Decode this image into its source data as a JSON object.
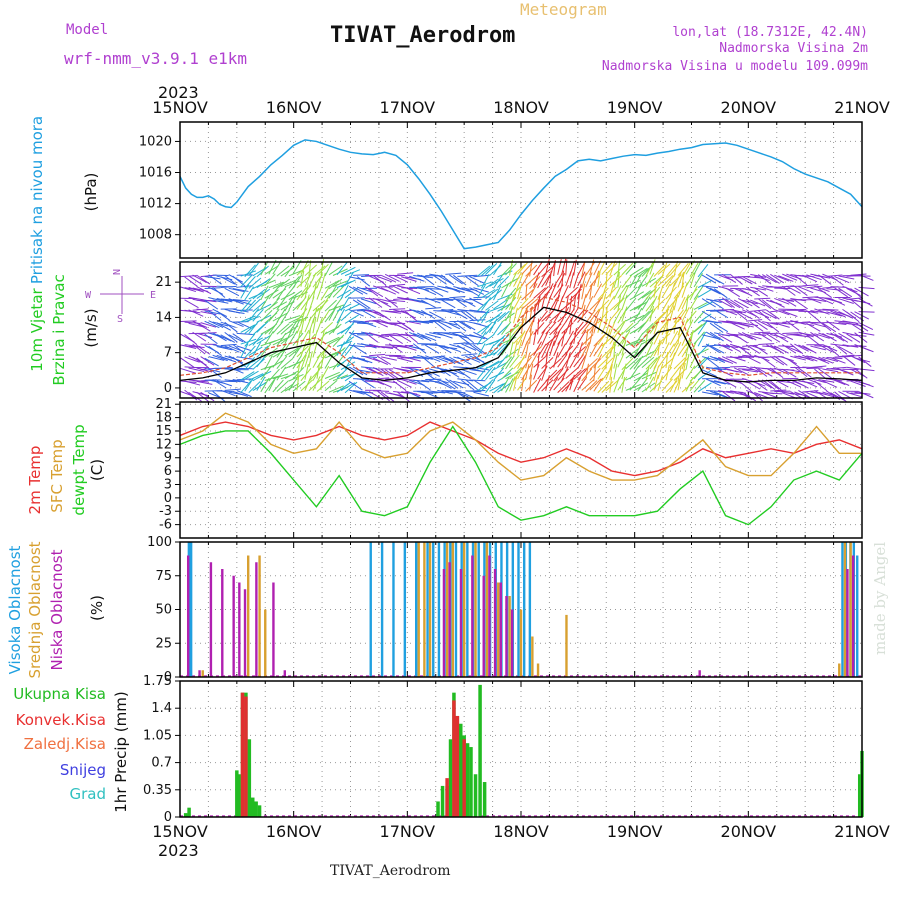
{
  "header": {
    "model_label": "Model",
    "model_name": "wrf-nmm_v3.9.1 e1km",
    "product": "Meteogram",
    "station": "TIVAT_Aerodrom",
    "lonlat": "lon,lat (18.7312E, 42.4N)",
    "altitude": "Nadmorska Visina 2m",
    "model_altitude": "Nadmorska Visina u modelu 109.099m",
    "year": "2023",
    "footer_station": "TIVAT_Aerodrom",
    "credit": "made by Angel",
    "compass": {
      "n": "N",
      "s": "S",
      "w": "W",
      "e": "E"
    }
  },
  "colors": {
    "pressure": "#1f9fe0",
    "wind_title": "#22cc22",
    "t2m": "#e83030",
    "sfc": "#d8a030",
    "dew": "#22cc22",
    "high": "#20a0e0",
    "mid": "#d8a030",
    "low": "#b020b0",
    "rain": "#22bb22",
    "conv": "#e03030"
  },
  "x_axis": {
    "labels": [
      "15NOV",
      "16NOV",
      "17NOV",
      "18NOV",
      "19NOV",
      "20NOV",
      "21NOV"
    ]
  },
  "chart_data": [
    {
      "type": "line",
      "panel": "pressure",
      "ylabel_main": "Pritisak na nivou mora",
      "ylabel_unit": "(hPa)",
      "yticks": [
        1008,
        1012,
        1016,
        1020
      ],
      "ylim": [
        1005,
        1022.5
      ],
      "x_days": [
        0,
        0.05,
        0.1,
        0.15,
        0.2,
        0.25,
        0.3,
        0.35,
        0.4,
        0.45,
        0.5,
        0.6,
        0.7,
        0.8,
        0.9,
        1.0,
        1.1,
        1.2,
        1.3,
        1.4,
        1.5,
        1.6,
        1.7,
        1.8,
        1.9,
        2.0,
        2.1,
        2.2,
        2.3,
        2.4,
        2.5,
        2.6,
        2.7,
        2.8,
        2.9,
        3.0,
        3.1,
        3.2,
        3.3,
        3.4,
        3.5,
        3.6,
        3.7,
        3.8,
        3.9,
        4.0,
        4.1,
        4.2,
        4.3,
        4.4,
        4.5,
        4.6,
        4.7,
        4.8,
        4.9,
        5.0,
        5.1,
        5.2,
        5.3,
        5.4,
        5.5,
        5.6,
        5.7,
        5.8,
        5.9,
        6.0
      ],
      "values": [
        1015.5,
        1014.0,
        1013.2,
        1012.8,
        1012.8,
        1013.0,
        1012.6,
        1011.9,
        1011.6,
        1011.5,
        1012.2,
        1014.2,
        1015.5,
        1017.0,
        1018.2,
        1019.5,
        1020.2,
        1020.0,
        1019.5,
        1019.0,
        1018.6,
        1018.4,
        1018.3,
        1018.6,
        1018.2,
        1017.0,
        1015.2,
        1013.2,
        1011.0,
        1008.6,
        1006.2,
        1006.4,
        1006.7,
        1007.0,
        1008.6,
        1010.6,
        1012.4,
        1014.0,
        1015.5,
        1016.4,
        1017.5,
        1017.7,
        1017.5,
        1017.8,
        1018.1,
        1018.3,
        1018.2,
        1018.5,
        1018.7,
        1019.0,
        1019.2,
        1019.6,
        1019.7,
        1019.8,
        1019.5,
        1019.0,
        1018.5,
        1018.0,
        1017.4,
        1016.5,
        1015.8,
        1015.3,
        1014.8,
        1014.0,
        1013.2,
        1011.6
      ],
      "series": [
        {
          "name": "",
          "color": "#1f9fe0"
        }
      ]
    },
    {
      "type": "line",
      "panel": "wind",
      "ylabel_main": "10m Vjetar",
      "ylabel_sub": "Brzina i Pravac",
      "ylabel_unit": "(m/s)",
      "yticks": [
        0,
        7,
        14,
        21
      ],
      "ylim": [
        -2,
        25
      ],
      "x_days": [
        0,
        0.2,
        0.4,
        0.6,
        0.8,
        1.0,
        1.2,
        1.4,
        1.6,
        1.8,
        2.0,
        2.2,
        2.4,
        2.6,
        2.8,
        3.0,
        3.2,
        3.4,
        3.6,
        3.8,
        4.0,
        4.2,
        4.4,
        4.6,
        4.8,
        5.0,
        5.2,
        5.4,
        5.6,
        5.8,
        6.0
      ],
      "speed": [
        1.5,
        2,
        3,
        5,
        7,
        8,
        9,
        5,
        2,
        1.5,
        2,
        3,
        3.5,
        4,
        6,
        12,
        16,
        15,
        13,
        10,
        6,
        11,
        12,
        3,
        1.5,
        1.2,
        1.5,
        1.5,
        2,
        1.8,
        1.5
      ],
      "gust": [
        2.5,
        3,
        4,
        6,
        8,
        9,
        10,
        7,
        3,
        3,
        3,
        4,
        5,
        6,
        8,
        14,
        18,
        17,
        15,
        12,
        8,
        13,
        14,
        4,
        3,
        2.5,
        3,
        3,
        3,
        3,
        3
      ]
    },
    {
      "type": "line",
      "panel": "temperature",
      "ylabel_lines": [
        "2m Temp",
        "SFC Temp",
        "dewpt Temp"
      ],
      "ylabel_unit": "(C)",
      "yticks": [
        -6,
        -3,
        0,
        3,
        6,
        9,
        12,
        15,
        18,
        21
      ],
      "ylim": [
        -9,
        21.5
      ],
      "x_days": [
        0,
        0.2,
        0.4,
        0.6,
        0.8,
        1.0,
        1.2,
        1.4,
        1.6,
        1.8,
        2.0,
        2.2,
        2.4,
        2.6,
        2.8,
        3.0,
        3.2,
        3.4,
        3.6,
        3.8,
        4.0,
        4.2,
        4.4,
        4.6,
        4.8,
        5.0,
        5.2,
        5.4,
        5.6,
        5.8,
        6.0
      ],
      "series": [
        {
          "name": "2m Temp",
          "color": "#e83030",
          "values": [
            14,
            16,
            17,
            16,
            14,
            13,
            14,
            16,
            14,
            13,
            14,
            17,
            15,
            13,
            10,
            8,
            9,
            11,
            9,
            6,
            5,
            6,
            8,
            11,
            9,
            10,
            11,
            10,
            12,
            13,
            11
          ]
        },
        {
          "name": "SFC Temp",
          "color": "#d8a030",
          "values": [
            13,
            15,
            19,
            17,
            12,
            10,
            11,
            17,
            11,
            9,
            10,
            15,
            17,
            13,
            8,
            4,
            5,
            9,
            6,
            4,
            4,
            5,
            9,
            13,
            7,
            5,
            5,
            10,
            16,
            10,
            10
          ]
        },
        {
          "name": "dewpt Temp",
          "color": "#22cc22",
          "values": [
            12,
            14,
            15,
            15,
            10,
            4,
            -2,
            5,
            -3,
            -4,
            -2,
            8,
            16,
            8,
            -2,
            -5,
            -4,
            -2,
            -4,
            -4,
            -4,
            -3,
            2,
            6,
            -4,
            -6,
            -2,
            4,
            6,
            4,
            10
          ]
        }
      ]
    },
    {
      "type": "bar",
      "panel": "clouds",
      "ylabel_lines": [
        "Visoka Oblacnost",
        "Srednja Oblacnost",
        "Niska Oblacnost"
      ],
      "ylabel_unit": "(%)",
      "yticks": [
        0,
        25,
        50,
        75,
        100
      ],
      "ylim": [
        0,
        100
      ],
      "series": [
        {
          "name": "Visoka Oblacnost",
          "color": "#20a0e0",
          "x_days": [
            0.1,
            0.12,
            1.7,
            1.8,
            1.9,
            2.0,
            2.1,
            2.2,
            2.25,
            2.3,
            2.35,
            2.4,
            2.45,
            2.5,
            2.55,
            2.6,
            2.65,
            2.7,
            2.75,
            2.8,
            2.85,
            2.9,
            2.95,
            3.0,
            3.05,
            3.1,
            5.85,
            5.88,
            5.92,
            5.95,
            5.98
          ],
          "values": [
            100,
            100,
            100,
            100,
            100,
            100,
            100,
            100,
            100,
            100,
            100,
            100,
            100,
            100,
            100,
            100,
            100,
            100,
            100,
            100,
            100,
            100,
            100,
            100,
            100,
            100,
            100,
            100,
            100,
            100,
            90
          ]
        },
        {
          "name": "Srednja Oblacnost",
          "color": "#d8a030",
          "x_days": [
            0.2,
            0.6,
            0.7,
            0.75,
            2.1,
            2.15,
            2.2,
            2.35,
            2.4,
            2.5,
            2.6,
            2.7,
            2.8,
            2.9,
            3.0,
            3.1,
            3.15,
            3.4,
            5.8,
            5.85,
            5.9
          ],
          "values": [
            5,
            90,
            90,
            50,
            100,
            100,
            100,
            100,
            100,
            100,
            100,
            100,
            70,
            60,
            50,
            30,
            10,
            46,
            10,
            100,
            100
          ]
        },
        {
          "name": "Niska Oblacnost",
          "color": "#b020b0",
          "x_days": [
            0.05,
            0.15,
            0.25,
            0.35,
            0.45,
            0.5,
            0.55,
            0.65,
            0.8,
            0.9,
            2.3,
            2.35,
            2.45,
            2.55,
            2.65,
            2.7,
            2.75,
            2.8,
            2.85,
            2.9,
            4.55,
            5.85,
            5.9
          ],
          "values": [
            90,
            5,
            85,
            80,
            75,
            70,
            65,
            85,
            70,
            5,
            80,
            85,
            80,
            90,
            75,
            90,
            80,
            70,
            60,
            50,
            5,
            80,
            90
          ]
        }
      ]
    },
    {
      "type": "bar",
      "panel": "precipitation",
      "ylabel_lines": [
        "Ukupna Kisa",
        "Konvek.Kisa",
        "Zaledj.Kisa",
        "Snijeg",
        "Grad"
      ],
      "ylabel_unit": "1hr Precip (mm)",
      "yticks": [
        0,
        0.35,
        0.7,
        1.05,
        1.4,
        1.75
      ],
      "ylim": [
        0,
        1.75
      ],
      "series": [
        {
          "name": "Ukupna Kisa",
          "color": "#22bb22",
          "x_days": [
            0.05,
            0.08,
            0.5,
            0.52,
            0.55,
            0.58,
            0.61,
            0.64,
            0.67,
            0.7,
            2.27,
            2.31,
            2.35,
            2.38,
            2.41,
            2.44,
            2.47,
            2.5,
            2.53,
            2.56,
            2.6,
            2.64,
            2.68,
            5.98,
            6.0
          ],
          "values": [
            0.05,
            0.12,
            0.6,
            0.55,
            1.6,
            1.6,
            1.0,
            0.25,
            0.2,
            0.15,
            0.2,
            0.4,
            0.4,
            1.0,
            1.6,
            1.3,
            1.2,
            1.05,
            0.95,
            0.9,
            0.55,
            1.7,
            0.45,
            0.55,
            0.85
          ]
        },
        {
          "name": "Konvek.Kisa",
          "color": "#e03030",
          "x_days": [
            0.55,
            0.58,
            2.35,
            2.41,
            2.44,
            2.5
          ],
          "values": [
            1.6,
            1.55,
            0.5,
            1.5,
            1.3,
            1.0
          ]
        }
      ]
    }
  ]
}
